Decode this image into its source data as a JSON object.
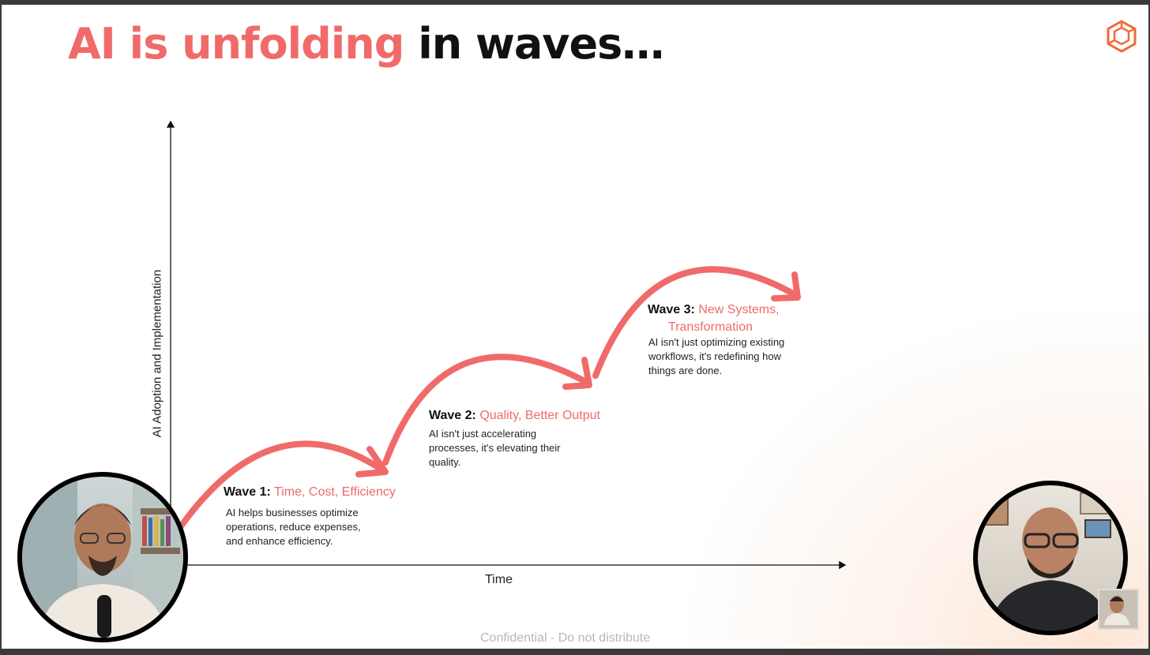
{
  "slide": {
    "title_highlight": "AI is unfolding",
    "title_rest": " in waves…",
    "logo_icon": "hexagon-logo-icon",
    "accent_color": "#f06a6a",
    "footer": "Confidential - Do not distribute"
  },
  "axes": {
    "y_label": "AI Adoption and Implementation",
    "x_label": "Time"
  },
  "waves": [
    {
      "label": "Wave 1:",
      "title": "Time, Cost, Efficiency",
      "description_lines": [
        "AI helps businesses optimize",
        "operations, reduce expenses,",
        "and enhance efficiency."
      ]
    },
    {
      "label": "Wave 2:",
      "title": "Quality, Better Output",
      "description_lines": [
        "AI isn't just accelerating",
        "processes, it's elevating their",
        "quality."
      ]
    },
    {
      "label": "Wave 3:",
      "title_lines": [
        "New Systems,",
        "Transformation"
      ],
      "description_lines": [
        "AI isn't just optimizing existing",
        "workflows, it's redefining how",
        "things are done."
      ]
    }
  ],
  "participants": [
    {
      "role": "speaker-left-video"
    },
    {
      "role": "speaker-right-video"
    },
    {
      "role": "self-view-thumbnail"
    }
  ]
}
